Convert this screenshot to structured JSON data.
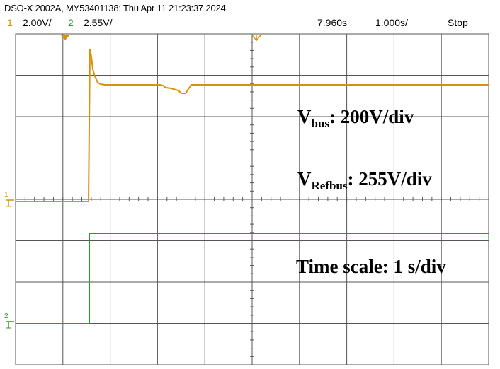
{
  "header": {
    "title": "DSO-X 2002A, MY53401138: Thu Apr 11 21:23:37 2024",
    "ch1_number": "1",
    "ch1_scale": "2.00V/",
    "ch2_number": "2",
    "ch2_scale": "2.55V/",
    "delay": "7.960s",
    "timebase": "1.000s/",
    "run_state": "Stop"
  },
  "annotations": {
    "vbus_main": "V",
    "vbus_sub": "bus",
    "vbus_rest": ": 200V/div",
    "vref_main": "V",
    "vref_sub": "Refbus",
    "vref_rest": ": 255V/div",
    "timescale": "Time scale: 1 s/div"
  },
  "markers": {
    "ch1_marker": "1",
    "ch2_marker": "2"
  },
  "colors": {
    "ch1": "#d8920a",
    "ch2": "#2a9a2a",
    "grid": "#555555",
    "background": "#ffffff"
  }
}
